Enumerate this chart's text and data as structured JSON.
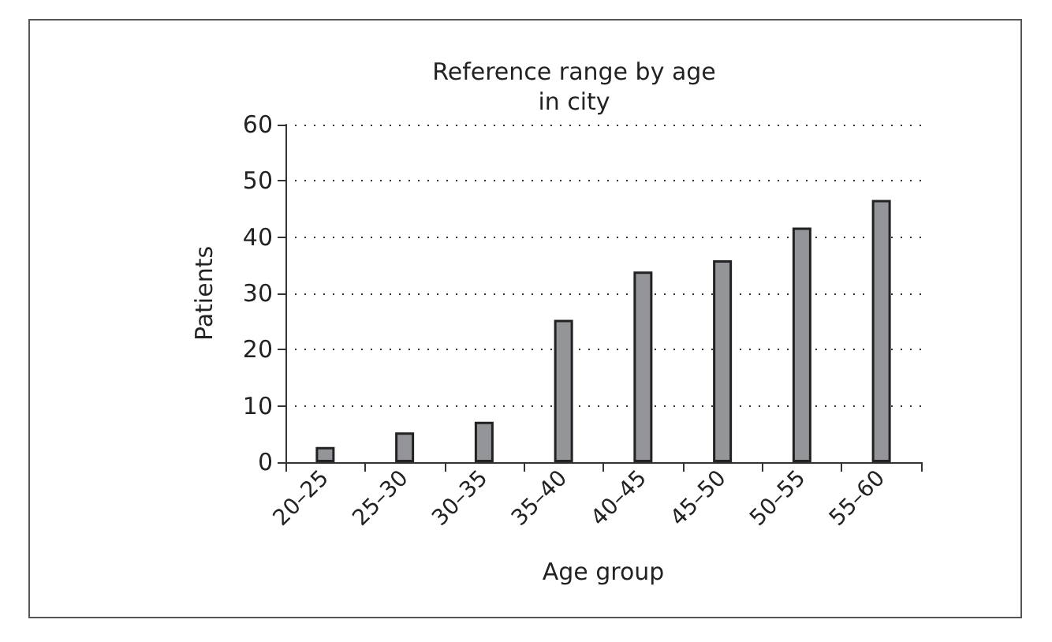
{
  "chart_data": {
    "type": "bar",
    "title": "Reference range by age\nin city",
    "xlabel": "Age group",
    "ylabel": "Patients",
    "categories": [
      "20–25",
      "25–30",
      "30–35",
      "35–40",
      "40–45",
      "45–50",
      "50–55",
      "55–60"
    ],
    "values": [
      2.7,
      5.3,
      7.2,
      25.3,
      33.9,
      35.9,
      41.7,
      46.6
    ],
    "color": "#939598",
    "ylim": [
      0,
      60
    ],
    "yticks": [
      0,
      10,
      20,
      30,
      40,
      50,
      60
    ],
    "grid": "y"
  }
}
